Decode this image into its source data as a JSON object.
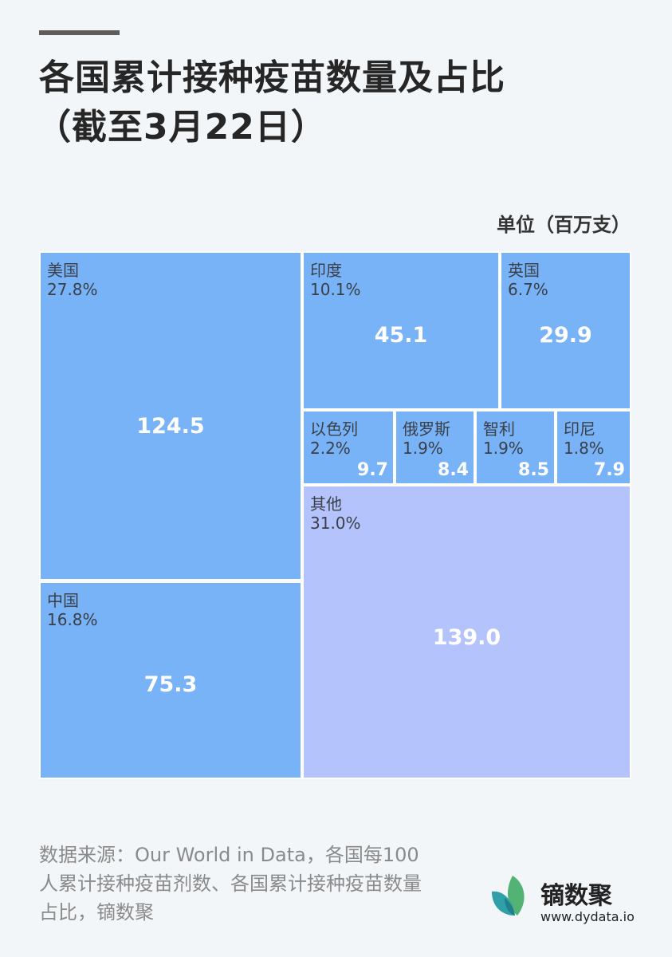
{
  "title_line1": "各国累计接种疫苗数量及占比",
  "title_line2": "（截至3月22日）",
  "unit": "单位（百万支）",
  "source": "数据来源：Our World in Data，各国每100人累计接种疫苗剂数、各国累计接种疫苗数量占比，镝数聚",
  "logo": {
    "name": "镝数聚",
    "url": "www.dydata.io"
  },
  "colors": {
    "country_tile": "#78b3f8",
    "other_tile": "#b5c3fd",
    "border": "#ffffff"
  },
  "chart_data": {
    "type": "treemap",
    "unit": "百万支",
    "items": [
      {
        "name": "美国",
        "pct": "27.8%",
        "value": "124.5",
        "color": "#78b3f8"
      },
      {
        "name": "中国",
        "pct": "16.8%",
        "value": "75.3",
        "color": "#78b3f8"
      },
      {
        "name": "印度",
        "pct": "10.1%",
        "value": "45.1",
        "color": "#78b3f8"
      },
      {
        "name": "英国",
        "pct": "6.7%",
        "value": "29.9",
        "color": "#78b3f8"
      },
      {
        "name": "以色列",
        "pct": "2.2%",
        "value": "9.7",
        "color": "#78b3f8"
      },
      {
        "name": "俄罗斯",
        "pct": "1.9%",
        "value": "8.4",
        "color": "#78b3f8"
      },
      {
        "name": "智利",
        "pct": "1.9%",
        "value": "8.5",
        "color": "#78b3f8"
      },
      {
        "name": "印尼",
        "pct": "1.8%",
        "value": "7.9",
        "color": "#78b3f8"
      },
      {
        "name": "其他",
        "pct": "31.0%",
        "value": "139.0",
        "color": "#b5c3fd"
      }
    ]
  }
}
